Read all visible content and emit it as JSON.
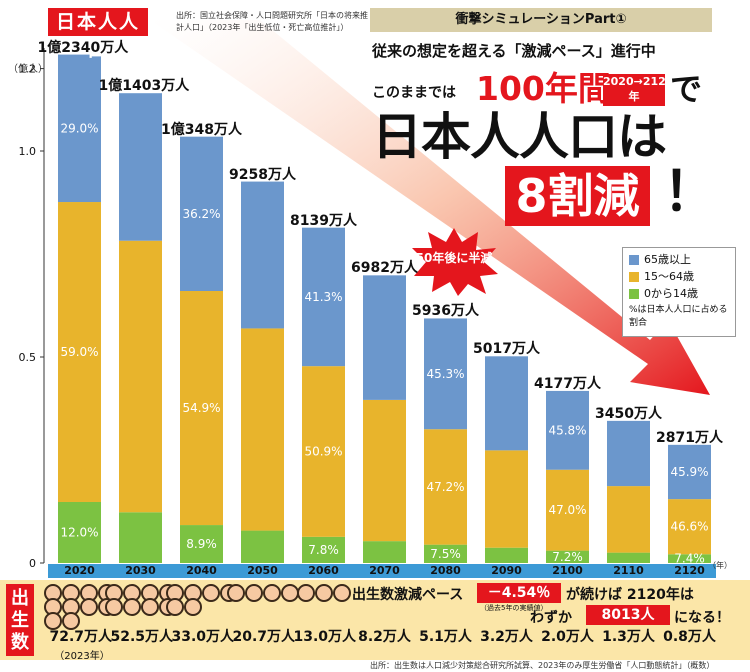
{
  "header": {
    "label": "日本人人口",
    "source_top": "出所：国立社会保障・人口問題研究所「日本の将来推計人口」（2023年「出生低位・死亡高位推計」）",
    "unit": "（億人）",
    "part_label": "衝撃シミュレーションPart①"
  },
  "headline": {
    "line1": "従来の想定を超える「激減ペース」進行中",
    "prefix": "このままでは",
    "big": "100年間",
    "years": "2020→2120年",
    "de": "で",
    "main": "日本人人口は",
    "red": "8割減",
    "excl": "！",
    "burst": "50年後に半減"
  },
  "legend": {
    "items": [
      {
        "label": "65歳以上",
        "color": "#6b97cc"
      },
      {
        "label": "15～64歳",
        "color": "#e8b42c"
      },
      {
        "label": "0から14歳",
        "color": "#7cc242"
      }
    ],
    "note": "%は日本人人口に占める割合"
  },
  "chart_data": {
    "type": "bar",
    "stacked": true,
    "categories": [
      "2020",
      "2030",
      "2040",
      "2050",
      "2060",
      "2070",
      "2080",
      "2090",
      "2100",
      "2110",
      "2120"
    ],
    "totals": [
      1.234,
      1.1403,
      1.0348,
      0.9258,
      0.8139,
      0.6982,
      0.5936,
      0.5017,
      0.4177,
      0.345,
      0.2871
    ],
    "total_labels": [
      "1億2340万人",
      "1億1403万人",
      "1億348万人",
      "9258万人",
      "8139万人",
      "6982万人",
      "5936万人",
      "5017万人",
      "4177万人",
      "3450万人",
      "2871万人"
    ],
    "series": [
      {
        "name": "0から14歳",
        "color": "#7cc242",
        "share": [
          0.12,
          0.108,
          0.089,
          0.085,
          0.078,
          0.076,
          0.075,
          0.074,
          0.072,
          0.073,
          0.074
        ],
        "labels": [
          "12.0%",
          "",
          "8.9%",
          "",
          "7.8%",
          "",
          "7.5%",
          "",
          "7.2%",
          "",
          "7.4%"
        ]
      },
      {
        "name": "15～64歳",
        "color": "#e8b42c",
        "share": [
          0.59,
          0.578,
          0.549,
          0.53,
          0.509,
          0.491,
          0.472,
          0.471,
          0.47,
          0.468,
          0.466
        ],
        "labels": [
          "59.0%",
          "",
          "54.9%",
          "",
          "50.9%",
          "",
          "47.2%",
          "",
          "47.0%",
          "",
          "46.6%"
        ]
      },
      {
        "name": "65歳以上",
        "color": "#6b97cc",
        "share": [
          0.29,
          0.314,
          0.362,
          0.385,
          0.413,
          0.433,
          0.453,
          0.455,
          0.458,
          0.459,
          0.459
        ],
        "labels": [
          "29.0%",
          "",
          "36.2%",
          "",
          "41.3%",
          "",
          "45.3%",
          "",
          "45.8%",
          "",
          "45.9%"
        ]
      }
    ],
    "ylim": [
      0,
      1.25
    ],
    "yticks": [
      0,
      0.5,
      1.0,
      1.2
    ],
    "ytick_labels": [
      "0",
      "0.5",
      "1.0",
      "1.2"
    ],
    "year_unit": "（年）"
  },
  "births": {
    "title": "出生数",
    "values": [
      "72.7万人",
      "52.5万人",
      "33.0万人",
      "20.7万人",
      "13.0万人",
      "8.2万人",
      "5.1万人",
      "3.2万人",
      "2.0万人",
      "1.3万人",
      "0.8万人"
    ],
    "first_note": "（2023年）"
  },
  "message": {
    "part1": "出生数激減ペース",
    "rate": "－4.54％",
    "rate_note": "（過去5年の実績値）",
    "part2": "が続けば 2120年は",
    "part3": "わずか",
    "part4": "8013人",
    "part5": "になる！"
  },
  "source_bottom": "出所：出生数は人口減少対策総合研究所試算、2023年のみ厚生労働省「人口動態統計」（概数）"
}
